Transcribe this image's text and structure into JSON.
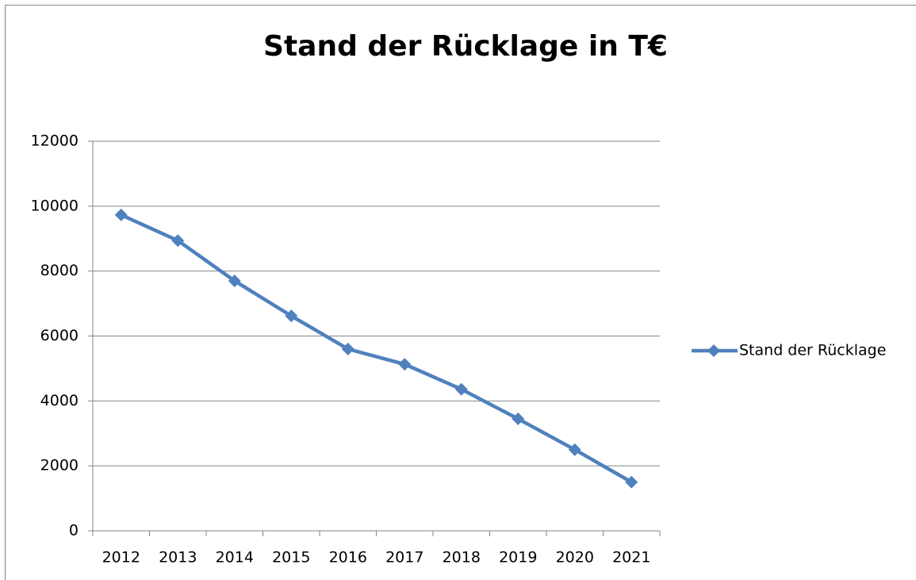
{
  "chart_data": {
    "type": "line",
    "title": "Stand der Rücklage in T€",
    "categories": [
      "2012",
      "2013",
      "2014",
      "2015",
      "2016",
      "2017",
      "2018",
      "2019",
      "2020",
      "2021"
    ],
    "series": [
      {
        "name": "Stand der Rücklage",
        "color": "#4f81bd",
        "values": [
          9730,
          8940,
          7700,
          6620,
          5600,
          5130,
          4360,
          3450,
          2500,
          1500
        ]
      }
    ],
    "ylim": [
      0,
      12000
    ],
    "yticks": [
      0,
      2000,
      4000,
      6000,
      8000,
      10000,
      12000
    ],
    "grid": true,
    "legend": "right"
  }
}
